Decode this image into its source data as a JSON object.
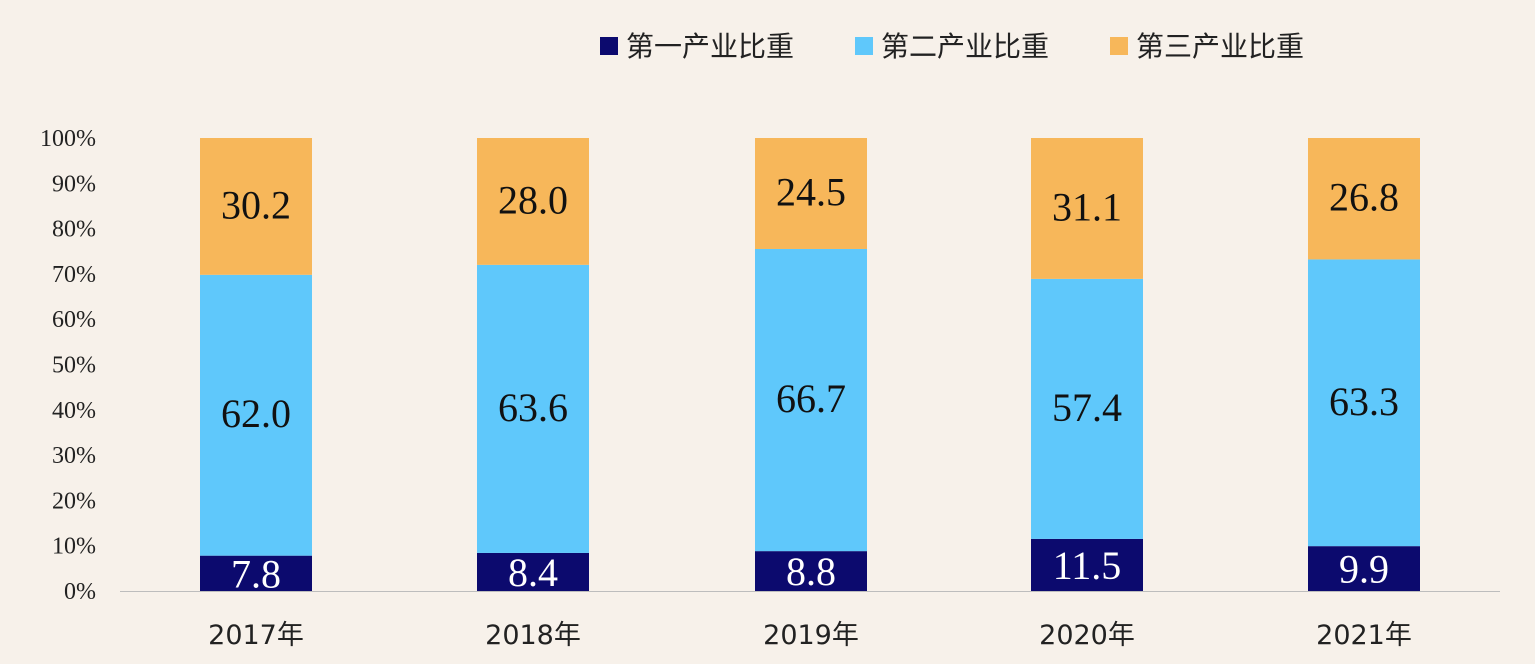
{
  "chart_data": {
    "type": "bar",
    "stacked": true,
    "categories": [
      "2017年",
      "2018年",
      "2019年",
      "2020年",
      "2021年"
    ],
    "series": [
      {
        "name": "第一产业比重",
        "values": [
          7.8,
          8.4,
          8.8,
          11.5,
          9.9
        ],
        "color": "#0c0a6e",
        "label_color": "#ffffff"
      },
      {
        "name": "第二产业比重",
        "values": [
          62.0,
          63.6,
          66.7,
          57.4,
          63.3
        ],
        "color": "#5fc8fb",
        "label_color": "#111111"
      },
      {
        "name": "第三产业比重",
        "values": [
          30.2,
          28.0,
          24.5,
          31.1,
          26.8
        ],
        "color": "#f7b75a",
        "label_color": "#111111"
      }
    ],
    "y_ticks": [
      "0%",
      "10%",
      "20%",
      "30%",
      "40%",
      "50%",
      "60%",
      "70%",
      "80%",
      "90%",
      "100%"
    ],
    "ylim": [
      0,
      100
    ],
    "grid": false,
    "legend_position": "top-right"
  }
}
